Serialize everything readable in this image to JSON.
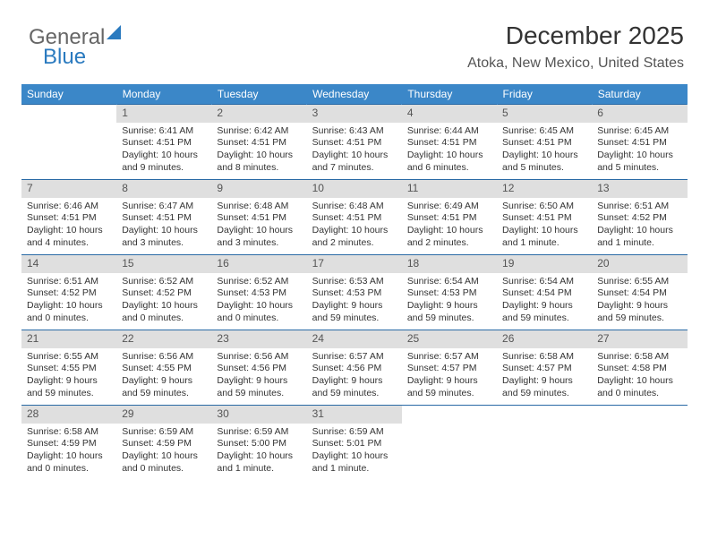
{
  "logo": {
    "part1": "General",
    "part2": "Blue"
  },
  "header": {
    "title": "December 2025",
    "location": "Atoka, New Mexico, United States"
  },
  "colors": {
    "header_bg": "#3b87c8",
    "row_border": "#2a6aa5",
    "daynum_bg": "#dfdfdf",
    "daynum_text": "#555",
    "text": "#333",
    "logo_blue": "#2a7abf",
    "logo_gray": "#666"
  },
  "weekdays": [
    "Sunday",
    "Monday",
    "Tuesday",
    "Wednesday",
    "Thursday",
    "Friday",
    "Saturday"
  ],
  "weeks": [
    [
      {
        "day": "",
        "sunrise": "",
        "sunset": "",
        "daylight1": "",
        "daylight2": ""
      },
      {
        "day": "1",
        "sunrise": "Sunrise: 6:41 AM",
        "sunset": "Sunset: 4:51 PM",
        "daylight1": "Daylight: 10 hours",
        "daylight2": "and 9 minutes."
      },
      {
        "day": "2",
        "sunrise": "Sunrise: 6:42 AM",
        "sunset": "Sunset: 4:51 PM",
        "daylight1": "Daylight: 10 hours",
        "daylight2": "and 8 minutes."
      },
      {
        "day": "3",
        "sunrise": "Sunrise: 6:43 AM",
        "sunset": "Sunset: 4:51 PM",
        "daylight1": "Daylight: 10 hours",
        "daylight2": "and 7 minutes."
      },
      {
        "day": "4",
        "sunrise": "Sunrise: 6:44 AM",
        "sunset": "Sunset: 4:51 PM",
        "daylight1": "Daylight: 10 hours",
        "daylight2": "and 6 minutes."
      },
      {
        "day": "5",
        "sunrise": "Sunrise: 6:45 AM",
        "sunset": "Sunset: 4:51 PM",
        "daylight1": "Daylight: 10 hours",
        "daylight2": "and 5 minutes."
      },
      {
        "day": "6",
        "sunrise": "Sunrise: 6:45 AM",
        "sunset": "Sunset: 4:51 PM",
        "daylight1": "Daylight: 10 hours",
        "daylight2": "and 5 minutes."
      }
    ],
    [
      {
        "day": "7",
        "sunrise": "Sunrise: 6:46 AM",
        "sunset": "Sunset: 4:51 PM",
        "daylight1": "Daylight: 10 hours",
        "daylight2": "and 4 minutes."
      },
      {
        "day": "8",
        "sunrise": "Sunrise: 6:47 AM",
        "sunset": "Sunset: 4:51 PM",
        "daylight1": "Daylight: 10 hours",
        "daylight2": "and 3 minutes."
      },
      {
        "day": "9",
        "sunrise": "Sunrise: 6:48 AM",
        "sunset": "Sunset: 4:51 PM",
        "daylight1": "Daylight: 10 hours",
        "daylight2": "and 3 minutes."
      },
      {
        "day": "10",
        "sunrise": "Sunrise: 6:48 AM",
        "sunset": "Sunset: 4:51 PM",
        "daylight1": "Daylight: 10 hours",
        "daylight2": "and 2 minutes."
      },
      {
        "day": "11",
        "sunrise": "Sunrise: 6:49 AM",
        "sunset": "Sunset: 4:51 PM",
        "daylight1": "Daylight: 10 hours",
        "daylight2": "and 2 minutes."
      },
      {
        "day": "12",
        "sunrise": "Sunrise: 6:50 AM",
        "sunset": "Sunset: 4:51 PM",
        "daylight1": "Daylight: 10 hours",
        "daylight2": "and 1 minute."
      },
      {
        "day": "13",
        "sunrise": "Sunrise: 6:51 AM",
        "sunset": "Sunset: 4:52 PM",
        "daylight1": "Daylight: 10 hours",
        "daylight2": "and 1 minute."
      }
    ],
    [
      {
        "day": "14",
        "sunrise": "Sunrise: 6:51 AM",
        "sunset": "Sunset: 4:52 PM",
        "daylight1": "Daylight: 10 hours",
        "daylight2": "and 0 minutes."
      },
      {
        "day": "15",
        "sunrise": "Sunrise: 6:52 AM",
        "sunset": "Sunset: 4:52 PM",
        "daylight1": "Daylight: 10 hours",
        "daylight2": "and 0 minutes."
      },
      {
        "day": "16",
        "sunrise": "Sunrise: 6:52 AM",
        "sunset": "Sunset: 4:53 PM",
        "daylight1": "Daylight: 10 hours",
        "daylight2": "and 0 minutes."
      },
      {
        "day": "17",
        "sunrise": "Sunrise: 6:53 AM",
        "sunset": "Sunset: 4:53 PM",
        "daylight1": "Daylight: 9 hours",
        "daylight2": "and 59 minutes."
      },
      {
        "day": "18",
        "sunrise": "Sunrise: 6:54 AM",
        "sunset": "Sunset: 4:53 PM",
        "daylight1": "Daylight: 9 hours",
        "daylight2": "and 59 minutes."
      },
      {
        "day": "19",
        "sunrise": "Sunrise: 6:54 AM",
        "sunset": "Sunset: 4:54 PM",
        "daylight1": "Daylight: 9 hours",
        "daylight2": "and 59 minutes."
      },
      {
        "day": "20",
        "sunrise": "Sunrise: 6:55 AM",
        "sunset": "Sunset: 4:54 PM",
        "daylight1": "Daylight: 9 hours",
        "daylight2": "and 59 minutes."
      }
    ],
    [
      {
        "day": "21",
        "sunrise": "Sunrise: 6:55 AM",
        "sunset": "Sunset: 4:55 PM",
        "daylight1": "Daylight: 9 hours",
        "daylight2": "and 59 minutes."
      },
      {
        "day": "22",
        "sunrise": "Sunrise: 6:56 AM",
        "sunset": "Sunset: 4:55 PM",
        "daylight1": "Daylight: 9 hours",
        "daylight2": "and 59 minutes."
      },
      {
        "day": "23",
        "sunrise": "Sunrise: 6:56 AM",
        "sunset": "Sunset: 4:56 PM",
        "daylight1": "Daylight: 9 hours",
        "daylight2": "and 59 minutes."
      },
      {
        "day": "24",
        "sunrise": "Sunrise: 6:57 AM",
        "sunset": "Sunset: 4:56 PM",
        "daylight1": "Daylight: 9 hours",
        "daylight2": "and 59 minutes."
      },
      {
        "day": "25",
        "sunrise": "Sunrise: 6:57 AM",
        "sunset": "Sunset: 4:57 PM",
        "daylight1": "Daylight: 9 hours",
        "daylight2": "and 59 minutes."
      },
      {
        "day": "26",
        "sunrise": "Sunrise: 6:58 AM",
        "sunset": "Sunset: 4:57 PM",
        "daylight1": "Daylight: 9 hours",
        "daylight2": "and 59 minutes."
      },
      {
        "day": "27",
        "sunrise": "Sunrise: 6:58 AM",
        "sunset": "Sunset: 4:58 PM",
        "daylight1": "Daylight: 10 hours",
        "daylight2": "and 0 minutes."
      }
    ],
    [
      {
        "day": "28",
        "sunrise": "Sunrise: 6:58 AM",
        "sunset": "Sunset: 4:59 PM",
        "daylight1": "Daylight: 10 hours",
        "daylight2": "and 0 minutes."
      },
      {
        "day": "29",
        "sunrise": "Sunrise: 6:59 AM",
        "sunset": "Sunset: 4:59 PM",
        "daylight1": "Daylight: 10 hours",
        "daylight2": "and 0 minutes."
      },
      {
        "day": "30",
        "sunrise": "Sunrise: 6:59 AM",
        "sunset": "Sunset: 5:00 PM",
        "daylight1": "Daylight: 10 hours",
        "daylight2": "and 1 minute."
      },
      {
        "day": "31",
        "sunrise": "Sunrise: 6:59 AM",
        "sunset": "Sunset: 5:01 PM",
        "daylight1": "Daylight: 10 hours",
        "daylight2": "and 1 minute."
      },
      {
        "day": "",
        "sunrise": "",
        "sunset": "",
        "daylight1": "",
        "daylight2": ""
      },
      {
        "day": "",
        "sunrise": "",
        "sunset": "",
        "daylight1": "",
        "daylight2": ""
      },
      {
        "day": "",
        "sunrise": "",
        "sunset": "",
        "daylight1": "",
        "daylight2": ""
      }
    ]
  ]
}
